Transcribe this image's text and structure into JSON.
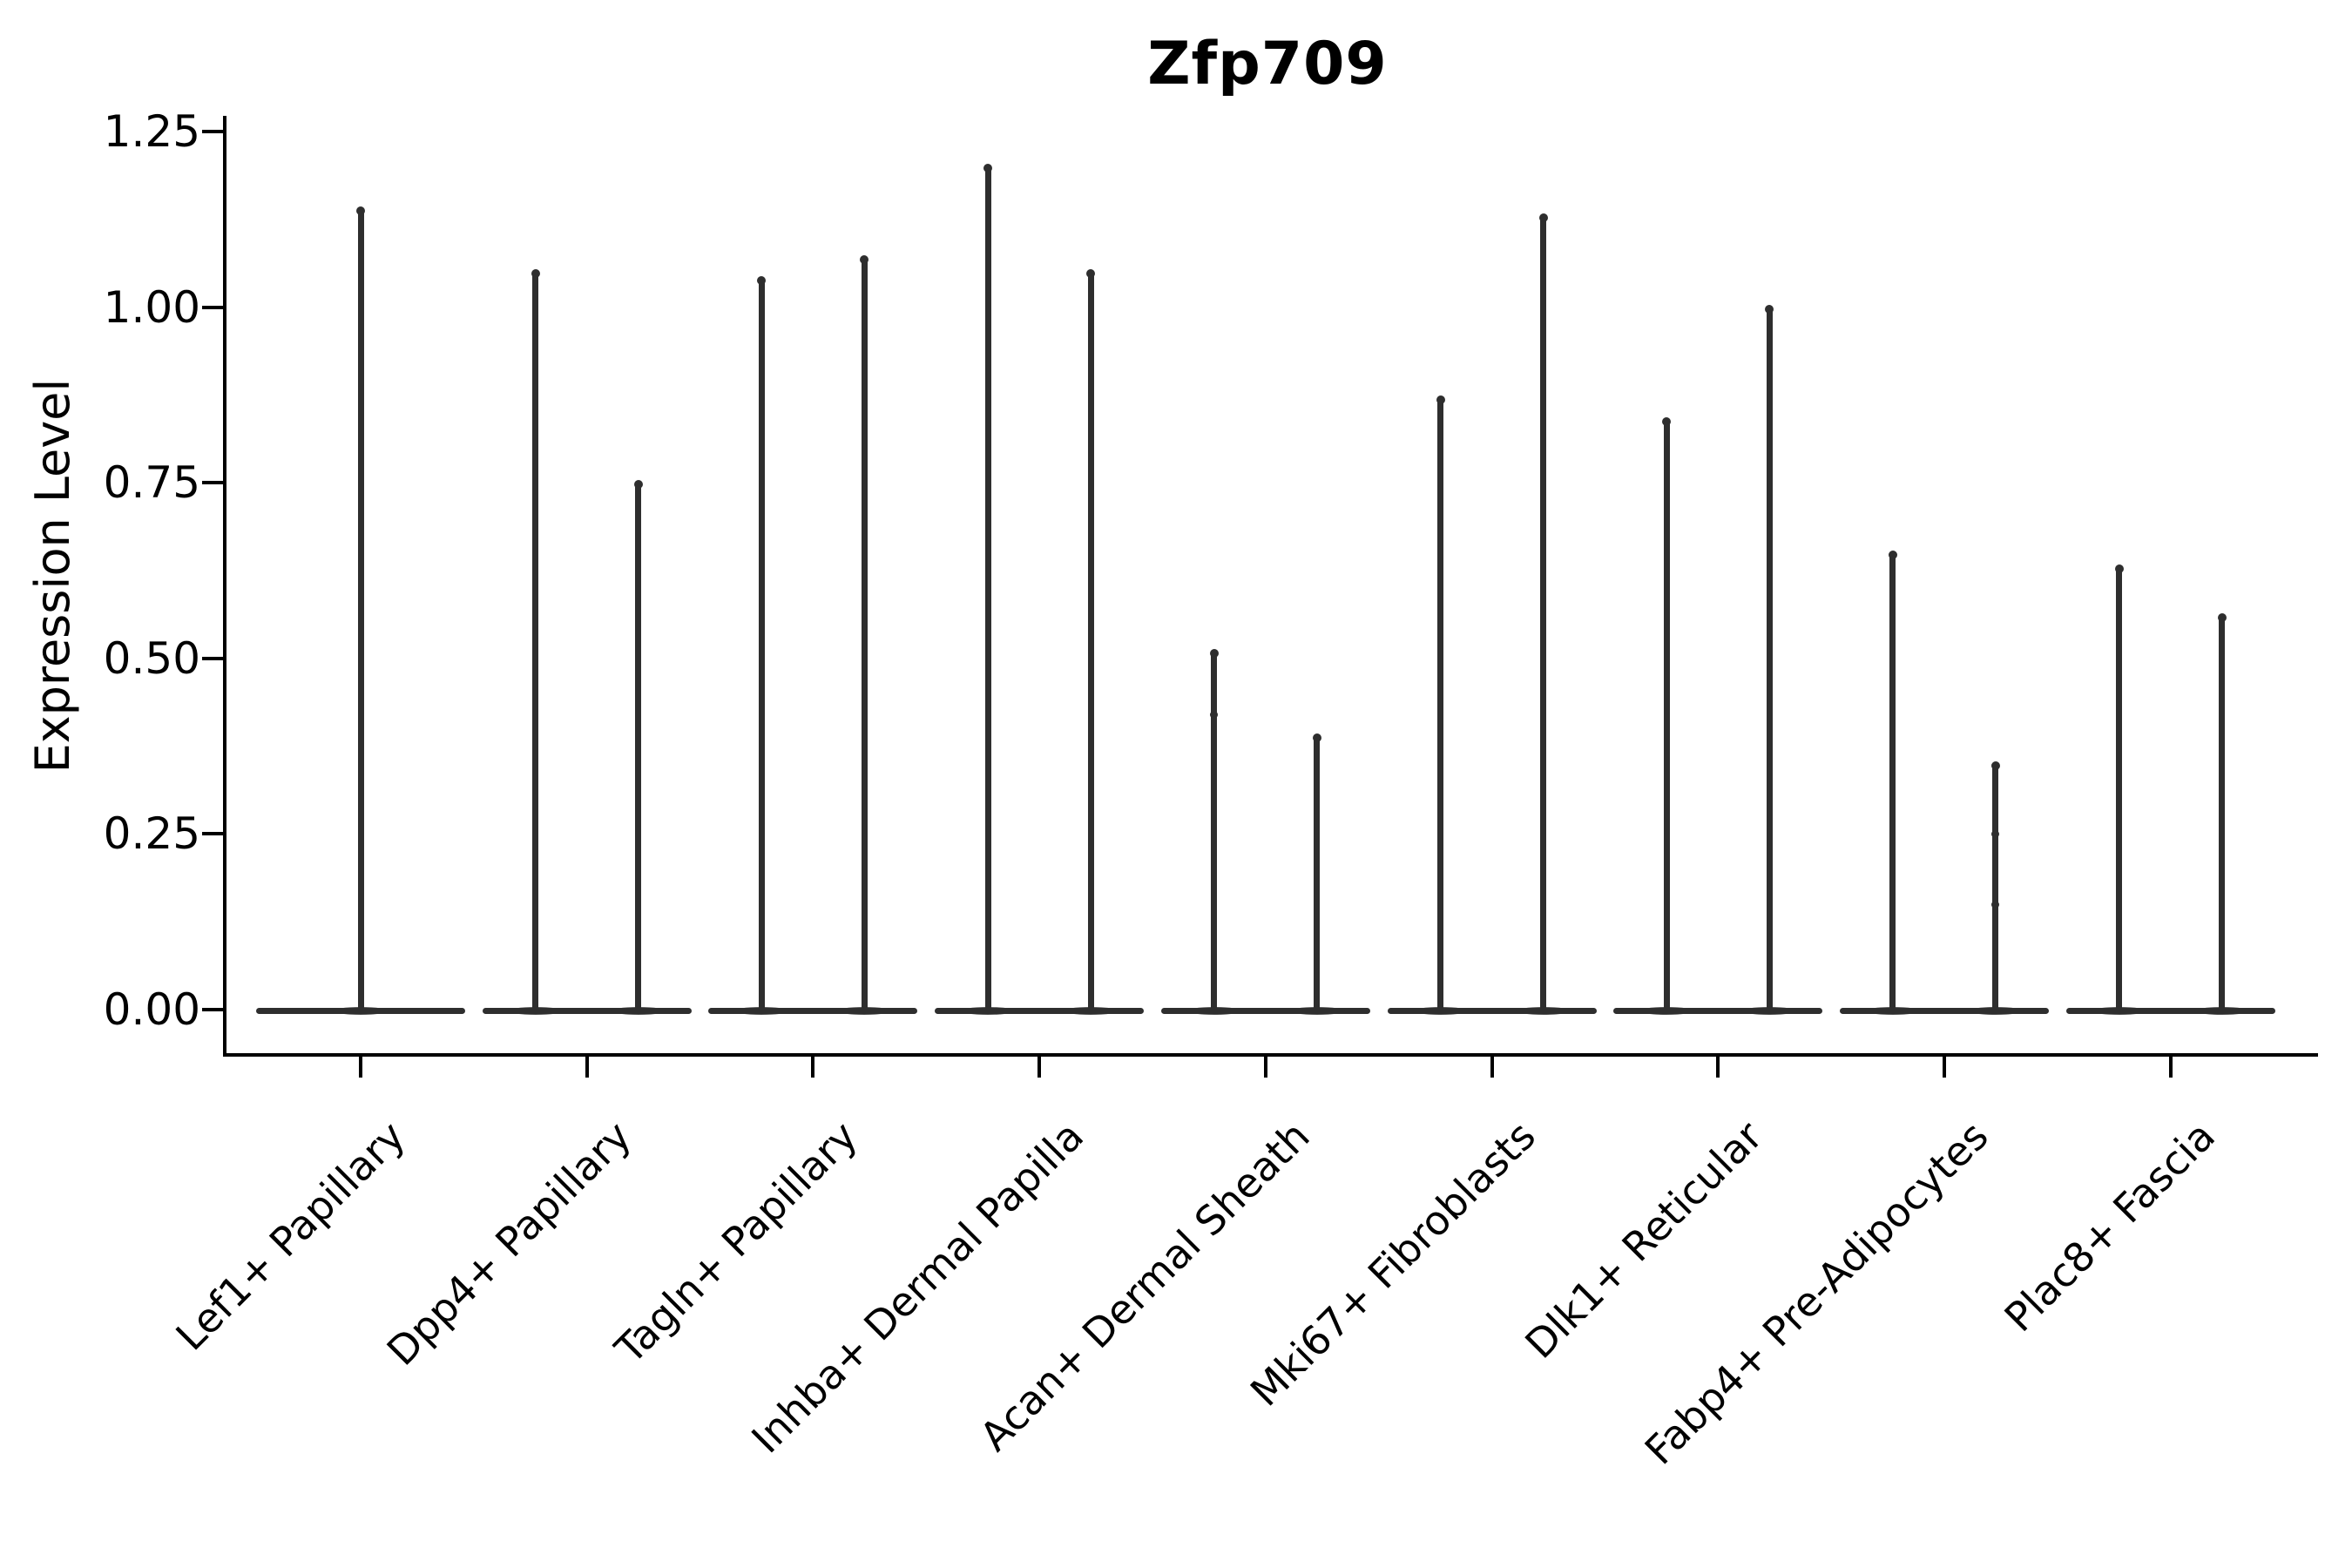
{
  "title": "Zfp709",
  "y_axis": {
    "label": "Expression Level",
    "tick_labels": [
      "0.00",
      "0.25",
      "0.50",
      "0.75",
      "1.00",
      "1.25"
    ],
    "tick_values": [
      0.0,
      0.25,
      0.5,
      0.75,
      1.0,
      1.25
    ]
  },
  "chart_data": {
    "type": "violin",
    "title": "Zfp709",
    "xlabel": "",
    "ylabel": "Expression Level",
    "ylim": [
      -0.06,
      1.27
    ],
    "grid": false,
    "legend": "none",
    "categories": [
      "Lef1+ Papillary",
      "Dpp4+ Papillary",
      "Tagln+ Papillary",
      "Inhba+ Dermal Papilla",
      "Acan+ Dermal Sheath",
      "Mki67+ Fibroblasts",
      "Dlk1+ Reticular",
      "Fabp4+ Pre-Adipocytes",
      "Plac8+ Fascia"
    ],
    "description": "Violin plot of Zfp709 expression; each cluster shows narrow spike-shaped violins with dense mass at 0. All violins have minimum 0; listed values are the maximum expression (spike tops) per violin.",
    "groups": [
      {
        "label": "Lef1+ Papillary",
        "violin_maxima": [
          1.14
        ],
        "dots": [
          []
        ]
      },
      {
        "label": "Dpp4+ Papillary",
        "violin_maxima": [
          1.05,
          0.75
        ],
        "dots": [
          [],
          []
        ]
      },
      {
        "label": "Tagln+ Papillary",
        "violin_maxima": [
          1.04,
          1.07
        ],
        "dots": [
          [],
          []
        ]
      },
      {
        "label": "Inhba+ Dermal Papilla",
        "violin_maxima": [
          1.2,
          1.05
        ],
        "dots": [
          [],
          []
        ]
      },
      {
        "label": "Acan+ Dermal Sheath",
        "violin_maxima": [
          0.51,
          0.39
        ],
        "dots": [
          [
            0.42
          ],
          []
        ]
      },
      {
        "label": "Mki67+ Fibroblasts",
        "violin_maxima": [
          0.87,
          1.13
        ],
        "dots": [
          [],
          []
        ]
      },
      {
        "label": "Dlk1+ Reticular",
        "violin_maxima": [
          0.84,
          1.0
        ],
        "dots": [
          [],
          []
        ]
      },
      {
        "label": "Fabp4+ Pre-Adipocytes",
        "violin_maxima": [
          0.65,
          0.35
        ],
        "dots": [
          [],
          [
            0.25,
            0.15
          ]
        ]
      },
      {
        "label": "Plac8+ Fascia",
        "violin_maxima": [
          0.63,
          0.56
        ],
        "dots": [
          [],
          []
        ]
      }
    ],
    "colors": {
      "violin": "#2e2e2e",
      "axis": "#000000",
      "text": "#000000",
      "background": "#ffffff"
    }
  }
}
